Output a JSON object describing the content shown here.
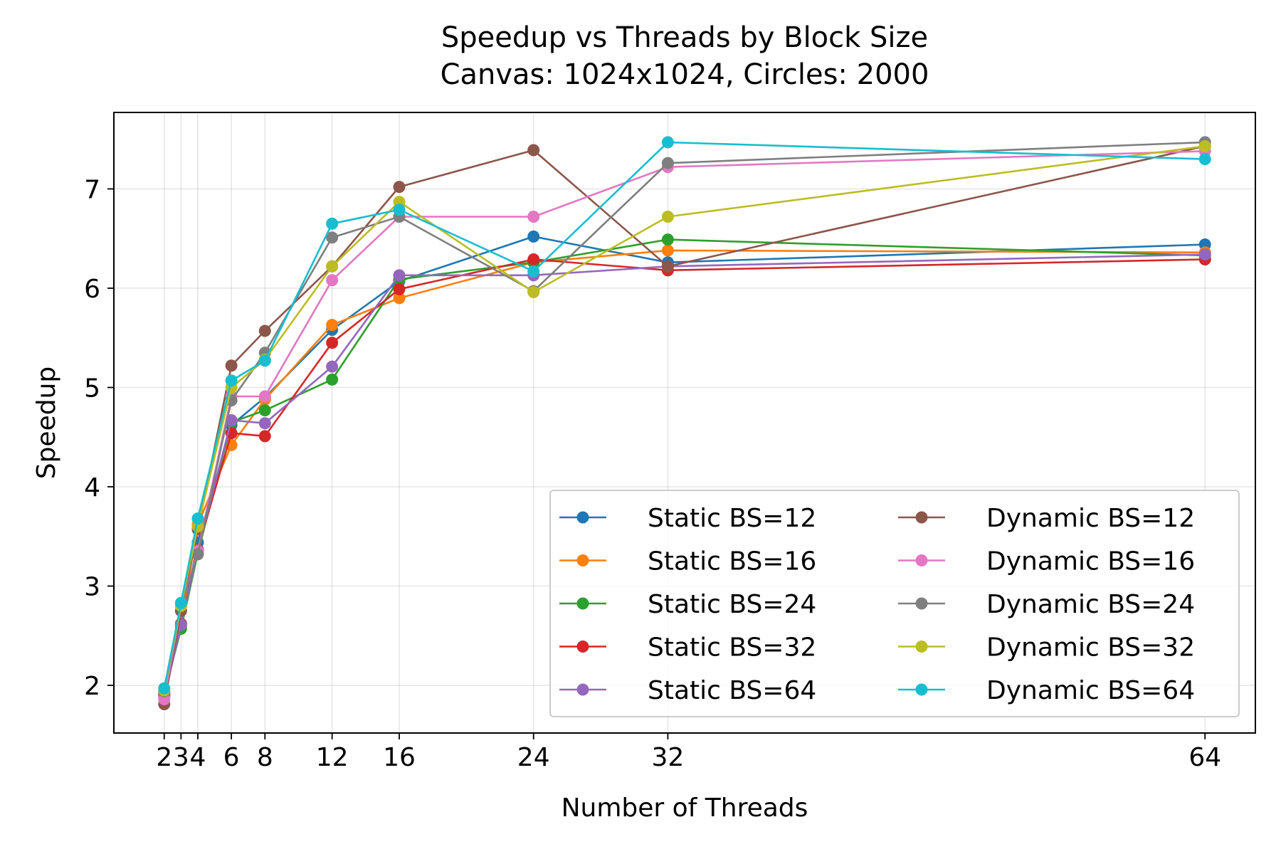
{
  "chart_data": {
    "type": "line",
    "title": "Speedup vs Threads by Block Size",
    "subtitle": "Canvas: 1024x1024, Circles: 2000",
    "xlabel": "Number of Threads",
    "ylabel": "Speedup",
    "x": [
      2,
      3,
      4,
      6,
      8,
      12,
      16,
      24,
      32,
      64
    ],
    "xticks": [
      2,
      3,
      4,
      6,
      8,
      12,
      16,
      24,
      32,
      64
    ],
    "xlim": [
      -1,
      67
    ],
    "yticks": [
      2,
      3,
      4,
      5,
      6,
      7
    ],
    "ylim": [
      1.52,
      7.77
    ],
    "grid": true,
    "legend": {
      "placement": "lower-right",
      "columns": 2
    },
    "series": [
      {
        "name": "Static BS=12",
        "color": "#1f77b4",
        "values": [
          1.93,
          2.6,
          3.44,
          4.62,
          4.9,
          5.58,
          6.07,
          6.52,
          6.26,
          6.44
        ]
      },
      {
        "name": "Static BS=16",
        "color": "#ff7f0e",
        "values": [
          1.9,
          2.62,
          3.62,
          4.42,
          4.88,
          5.63,
          5.9,
          6.26,
          6.38,
          6.36
        ]
      },
      {
        "name": "Static BS=24",
        "color": "#2ca02c",
        "values": [
          1.92,
          2.57,
          3.33,
          4.65,
          4.77,
          5.08,
          6.09,
          6.26,
          6.49,
          6.33
        ]
      },
      {
        "name": "Static BS=32",
        "color": "#d62728",
        "values": [
          1.9,
          2.62,
          3.37,
          4.54,
          4.51,
          5.45,
          5.99,
          6.29,
          6.18,
          6.29
        ]
      },
      {
        "name": "Static BS=64",
        "color": "#9467bd",
        "values": [
          1.88,
          2.61,
          3.36,
          4.67,
          4.64,
          5.21,
          6.13,
          6.13,
          6.22,
          6.34
        ]
      },
      {
        "name": "Dynamic BS=12",
        "color": "#8c564b",
        "values": [
          1.81,
          2.75,
          3.57,
          5.22,
          5.57,
          6.22,
          7.02,
          7.39,
          6.22,
          7.43
        ]
      },
      {
        "name": "Dynamic BS=16",
        "color": "#e377c2",
        "values": [
          1.86,
          2.8,
          3.35,
          4.91,
          4.91,
          6.08,
          6.72,
          6.72,
          7.22,
          7.38
        ]
      },
      {
        "name": "Dynamic BS=24",
        "color": "#7f7f7f",
        "values": [
          1.94,
          2.8,
          3.32,
          4.87,
          5.35,
          6.51,
          6.72,
          5.97,
          7.26,
          7.47
        ]
      },
      {
        "name": "Dynamic BS=32",
        "color": "#bcbd22",
        "values": [
          1.95,
          2.8,
          3.6,
          5.0,
          5.28,
          6.22,
          6.87,
          5.96,
          6.72,
          7.43
        ]
      },
      {
        "name": "Dynamic BS=64",
        "color": "#17becf",
        "values": [
          1.97,
          2.83,
          3.68,
          5.07,
          5.27,
          6.65,
          6.79,
          6.17,
          7.47,
          7.3
        ]
      }
    ]
  }
}
